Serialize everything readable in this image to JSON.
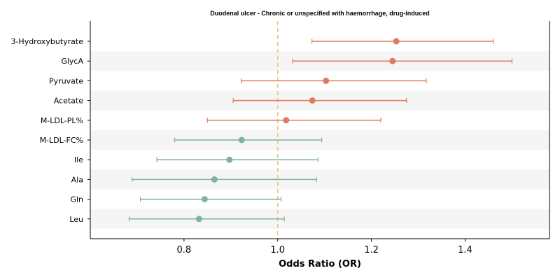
{
  "chart_data": {
    "type": "forest-plot",
    "title": "Duodenal ulcer - Chronic or unspecified with haemorrhage, drug-induced",
    "xlabel": "Odds Ratio (OR)",
    "xlim": [
      0.6,
      1.58
    ],
    "xticks": [
      "0.8",
      "1.0",
      "1.2",
      "1.4"
    ],
    "reference_line": 1.0,
    "grid": false,
    "row_banding": true,
    "colors": {
      "positive": "#E07A5F",
      "negative": "#81B29A",
      "reference": "#F2C27A",
      "band": "#F5F5F5",
      "axis": "#000000"
    },
    "rows": [
      {
        "label": "3-Hydroxybutyrate",
        "or": 1.253,
        "lower": 1.073,
        "upper": 1.46,
        "group": "positive"
      },
      {
        "label": "GlycA",
        "or": 1.245,
        "lower": 1.032,
        "upper": 1.5,
        "group": "positive"
      },
      {
        "label": "Pyruvate",
        "or": 1.103,
        "lower": 0.922,
        "upper": 1.317,
        "group": "positive"
      },
      {
        "label": "Acetate",
        "or": 1.074,
        "lower": 0.905,
        "upper": 1.275,
        "group": "positive"
      },
      {
        "label": "M-LDL-PL%",
        "or": 1.018,
        "lower": 0.85,
        "upper": 1.22,
        "group": "positive"
      },
      {
        "label": "M-LDL-FC%",
        "or": 0.923,
        "lower": 0.78,
        "upper": 1.094,
        "group": "negative"
      },
      {
        "label": "Ile",
        "or": 0.897,
        "lower": 0.742,
        "upper": 1.086,
        "group": "negative"
      },
      {
        "label": "Ala",
        "or": 0.865,
        "lower": 0.689,
        "upper": 1.083,
        "group": "negative"
      },
      {
        "label": "Gln",
        "or": 0.844,
        "lower": 0.707,
        "upper": 1.007,
        "group": "negative"
      },
      {
        "label": "Leu",
        "or": 0.832,
        "lower": 0.683,
        "upper": 1.014,
        "group": "negative"
      }
    ]
  }
}
